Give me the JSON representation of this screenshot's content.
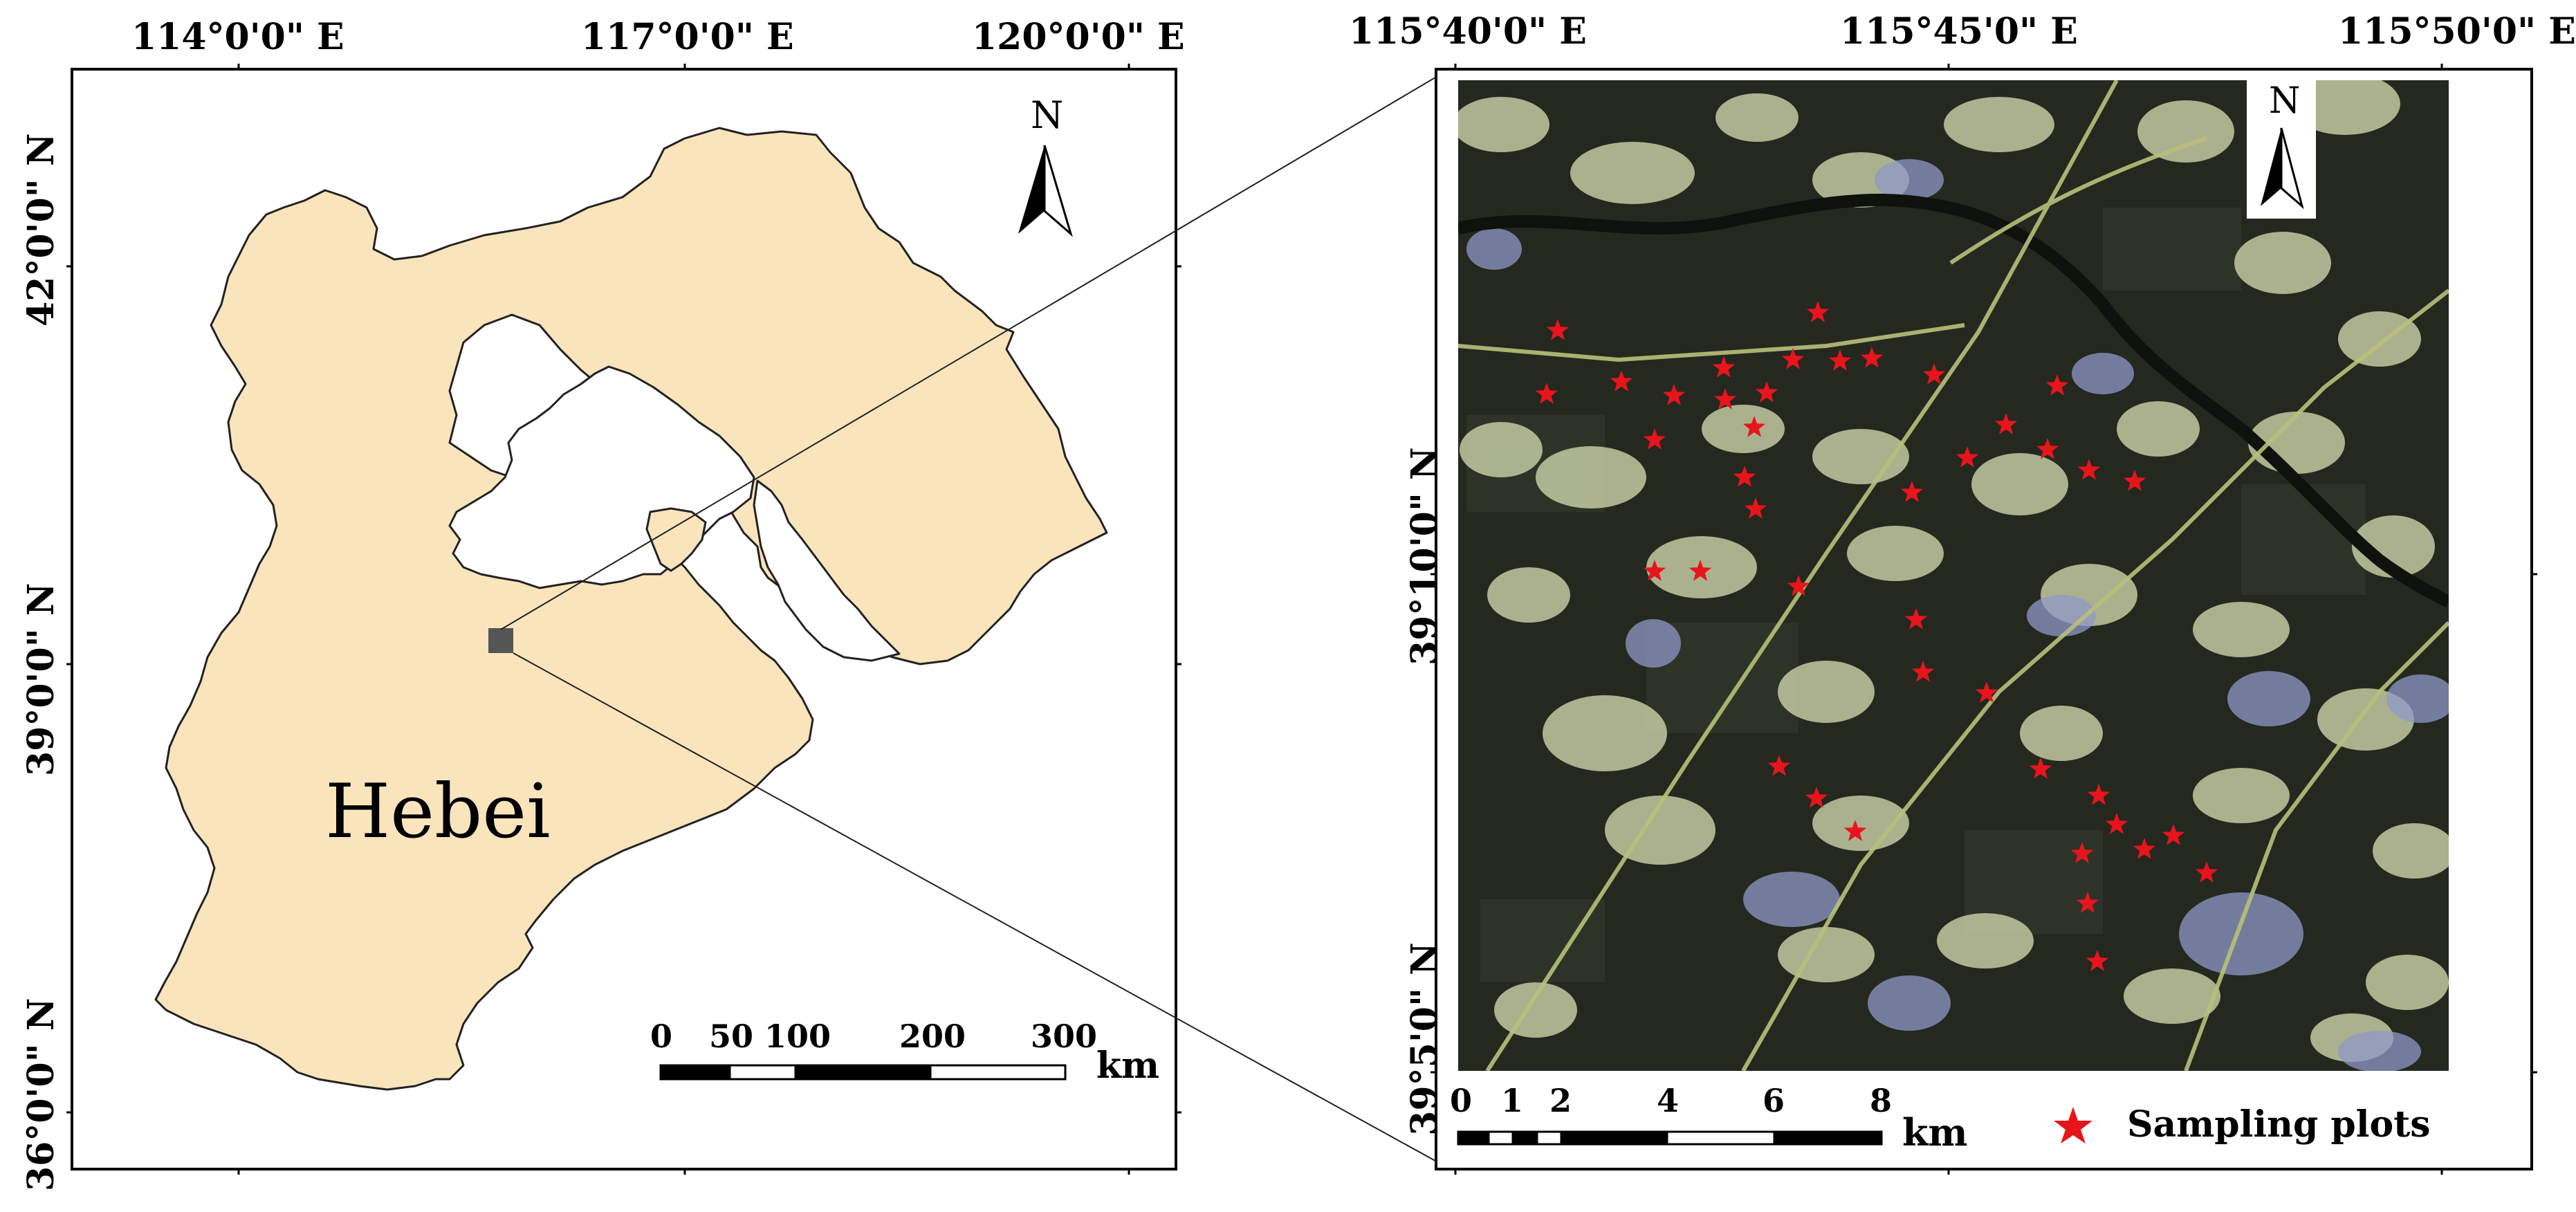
{
  "left_map": {
    "x_ticks": [
      "114°0'0\" E",
      "117°0'0\" E",
      "120°0'0\" E"
    ],
    "y_ticks": [
      "42°0'0\" N",
      "39°0'0\" N",
      "36°0'0\" N"
    ],
    "region_label": "Hebei",
    "north_label": "N",
    "scale_labels": [
      "0",
      "50",
      "100",
      "200",
      "300"
    ],
    "scale_unit": "km",
    "colors": {
      "province_fill": "#f9e4bc",
      "outline": "#222222",
      "study_area": "#555555"
    }
  },
  "right_map": {
    "x_ticks": [
      "115°40'0\" E",
      "115°45'0\" E",
      "115°50'0\" E"
    ],
    "y_ticks": [
      "39°10'0\" N",
      "39°5'0\" N"
    ],
    "north_label": "N",
    "scale_labels": [
      "0",
      "1",
      "2",
      "4",
      "6",
      "8"
    ],
    "scale_unit": "km",
    "legend_label": "Sampling plots",
    "colors": {
      "star": "#e8141c",
      "imagery_dark": "#24281f"
    }
  }
}
